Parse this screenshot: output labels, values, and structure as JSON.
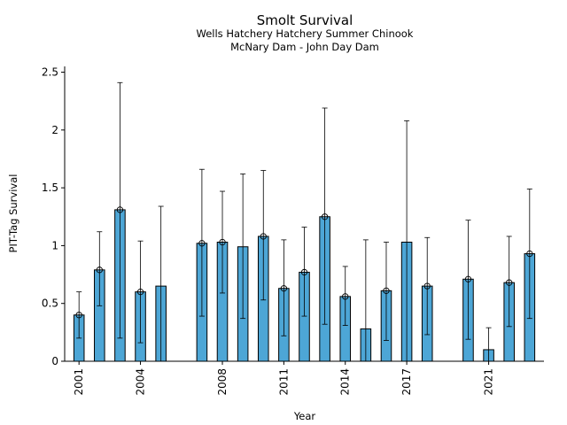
{
  "chart_data": {
    "type": "bar",
    "title": "Smolt Survival",
    "subtitle_lines": [
      "Wells Hatchery Hatchery Summer Chinook",
      "McNary Dam - John Day Dam"
    ],
    "xlabel": "Year",
    "ylabel": "PIT-Tag Survival",
    "xlim": [
      2000.3,
      2023.7
    ],
    "ylim": [
      0,
      2.55
    ],
    "xticks": [
      2001,
      2004,
      2008,
      2011,
      2014,
      2017,
      2021
    ],
    "yticks": [
      0,
      0.5,
      1,
      1.5,
      2,
      2.5
    ],
    "ytick_labels": [
      "0",
      "0.5",
      "1",
      "1.5",
      "2",
      "2.5"
    ],
    "bar_color": "#4da6d6",
    "grid": false,
    "points": [
      {
        "x": 2001,
        "y": 0.4,
        "lo": 0.2,
        "hi": 0.6,
        "marker": true
      },
      {
        "x": 2002,
        "y": 0.79,
        "lo": 0.48,
        "hi": 1.12,
        "marker": true
      },
      {
        "x": 2003,
        "y": 1.31,
        "lo": 0.2,
        "hi": 2.41,
        "marker": true
      },
      {
        "x": 2004,
        "y": 0.6,
        "lo": 0.16,
        "hi": 1.04,
        "marker": true
      },
      {
        "x": 2005,
        "y": 0.65,
        "lo": null,
        "hi": 1.34,
        "marker": false
      },
      {
        "x": 2007,
        "y": 1.02,
        "lo": 0.39,
        "hi": 1.66,
        "marker": true
      },
      {
        "x": 2008,
        "y": 1.03,
        "lo": 0.59,
        "hi": 1.47,
        "marker": true
      },
      {
        "x": 2009,
        "y": 0.99,
        "lo": 0.37,
        "hi": 1.62,
        "marker": false
      },
      {
        "x": 2010,
        "y": 1.08,
        "lo": 0.53,
        "hi": 1.65,
        "marker": true
      },
      {
        "x": 2011,
        "y": 0.63,
        "lo": 0.22,
        "hi": 1.05,
        "marker": true
      },
      {
        "x": 2012,
        "y": 0.77,
        "lo": 0.39,
        "hi": 1.16,
        "marker": true
      },
      {
        "x": 2013,
        "y": 1.25,
        "lo": 0.32,
        "hi": 2.19,
        "marker": true
      },
      {
        "x": 2014,
        "y": 0.56,
        "lo": 0.31,
        "hi": 0.82,
        "marker": true
      },
      {
        "x": 2015,
        "y": 0.28,
        "lo": null,
        "hi": 1.05,
        "marker": false
      },
      {
        "x": 2016,
        "y": 0.61,
        "lo": 0.18,
        "hi": 1.03,
        "marker": true
      },
      {
        "x": 2017,
        "y": 1.03,
        "lo": null,
        "hi": 2.08,
        "marker": false
      },
      {
        "x": 2018,
        "y": 0.65,
        "lo": 0.23,
        "hi": 1.07,
        "marker": true
      },
      {
        "x": 2020,
        "y": 0.71,
        "lo": 0.19,
        "hi": 1.22,
        "marker": true
      },
      {
        "x": 2021,
        "y": 0.1,
        "lo": null,
        "hi": 0.29,
        "marker": false
      },
      {
        "x": 2022,
        "y": 0.68,
        "lo": 0.3,
        "hi": 1.08,
        "marker": true
      },
      {
        "x": 2023,
        "y": 0.93,
        "lo": 0.37,
        "hi": 1.49,
        "marker": true
      }
    ]
  }
}
